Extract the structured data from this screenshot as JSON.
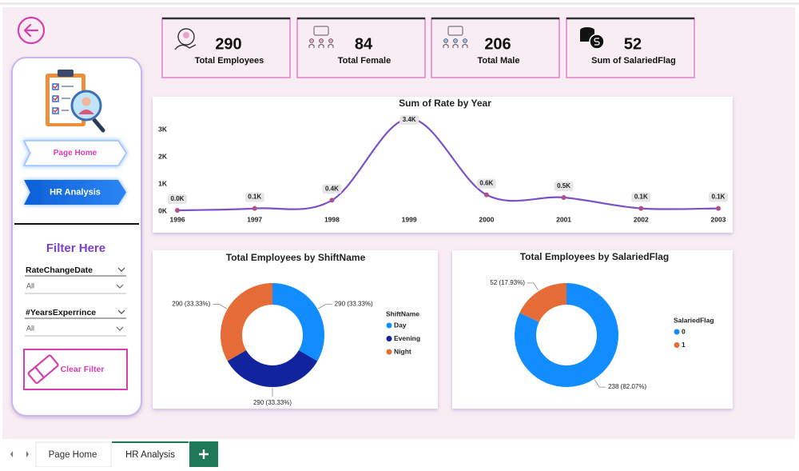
{
  "kpis": [
    {
      "value": 290,
      "label": "Total Employees"
    },
    {
      "value": 84,
      "label": "Total Female"
    },
    {
      "value": 206,
      "label": "Total Male"
    },
    {
      "value": 52,
      "label": "Sum of SalariedFlag"
    }
  ],
  "sidebar": {
    "nav": [
      "Page Home",
      "HR Analysis"
    ],
    "filter_title": "Filter Here",
    "filters": [
      {
        "label": "RateChangeDate",
        "value": "All"
      },
      {
        "label": "#YearsExperrince",
        "value": "All"
      }
    ],
    "clear_button": "Clear Filter"
  },
  "tabs": [
    "Page Home",
    "HR Analysis"
  ],
  "chart_data": [
    {
      "type": "line",
      "title": "Sum of Rate by Year",
      "categories": [
        "1996",
        "1997",
        "1998",
        "1999",
        "2000",
        "2001",
        "2002",
        "2003"
      ],
      "values": [
        30,
        100,
        400,
        3400,
        600,
        500,
        100,
        100
      ],
      "value_labels": [
        "0.0K",
        "0.1K",
        "0.4K",
        "3.4K",
        "0.6K",
        "0.5K",
        "0.1K",
        "0.1K"
      ],
      "color": "#7b52c8",
      "marker_color": "#b0508a",
      "ylim": [
        0,
        3400
      ],
      "yticks": [
        {
          "value": 0,
          "label": "0K"
        },
        {
          "value": 1000,
          "label": "1K"
        },
        {
          "value": 2000,
          "label": "2K"
        },
        {
          "value": 3000,
          "label": "3K"
        }
      ],
      "grid": false
    },
    {
      "type": "donut",
      "title": "Total Employees by ShiftName",
      "legend_title": "ShiftName",
      "categories": [
        "Day",
        "Evening",
        "Night"
      ],
      "values": [
        290,
        290,
        290
      ],
      "value_labels": [
        "290 (33.33%)",
        "290 (33.33%)",
        "290 (33.33%)"
      ],
      "colors": [
        "#118dff",
        "#12239e",
        "#e66c37"
      ]
    },
    {
      "type": "donut",
      "title": "Total Employees by SalariedFlag",
      "legend_title": "SalariedFlag",
      "categories": [
        "0",
        "1"
      ],
      "values": [
        238,
        52
      ],
      "value_labels": [
        "238 (82.07%)",
        "52 (17.93%)"
      ],
      "colors": [
        "#118dff",
        "#e66c37"
      ]
    }
  ]
}
